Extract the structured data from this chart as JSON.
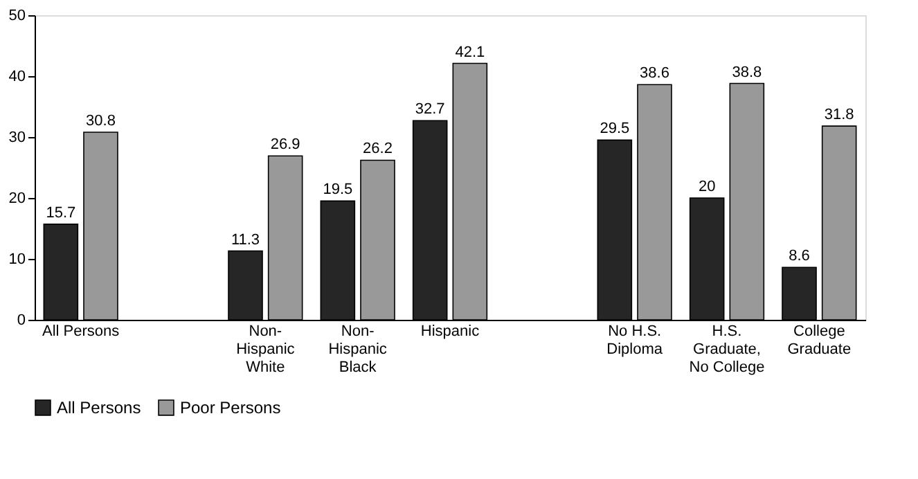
{
  "chart_data": {
    "type": "bar",
    "categories": [
      "All Persons",
      null,
      "Non-\nHispanic\nWhite",
      "Non-\nHispanic\nBlack",
      "Hispanic",
      null,
      "No H.S.\nDiploma",
      "H.S.\nGraduate,\nNo College",
      "College\nGraduate"
    ],
    "series": [
      {
        "name": "All Persons",
        "color": "#262626",
        "values": [
          15.7,
          null,
          11.3,
          19.5,
          32.7,
          null,
          29.5,
          20,
          8.6
        ]
      },
      {
        "name": "Poor Persons",
        "color": "#999999",
        "values": [
          30.8,
          null,
          26.9,
          26.2,
          42.1,
          null,
          38.6,
          38.8,
          31.8
        ]
      }
    ],
    "ylim": [
      0,
      50
    ],
    "yticks": [
      0,
      10,
      20,
      30,
      40,
      50
    ],
    "grid": false,
    "legend": "bottom",
    "data_labels": true
  }
}
